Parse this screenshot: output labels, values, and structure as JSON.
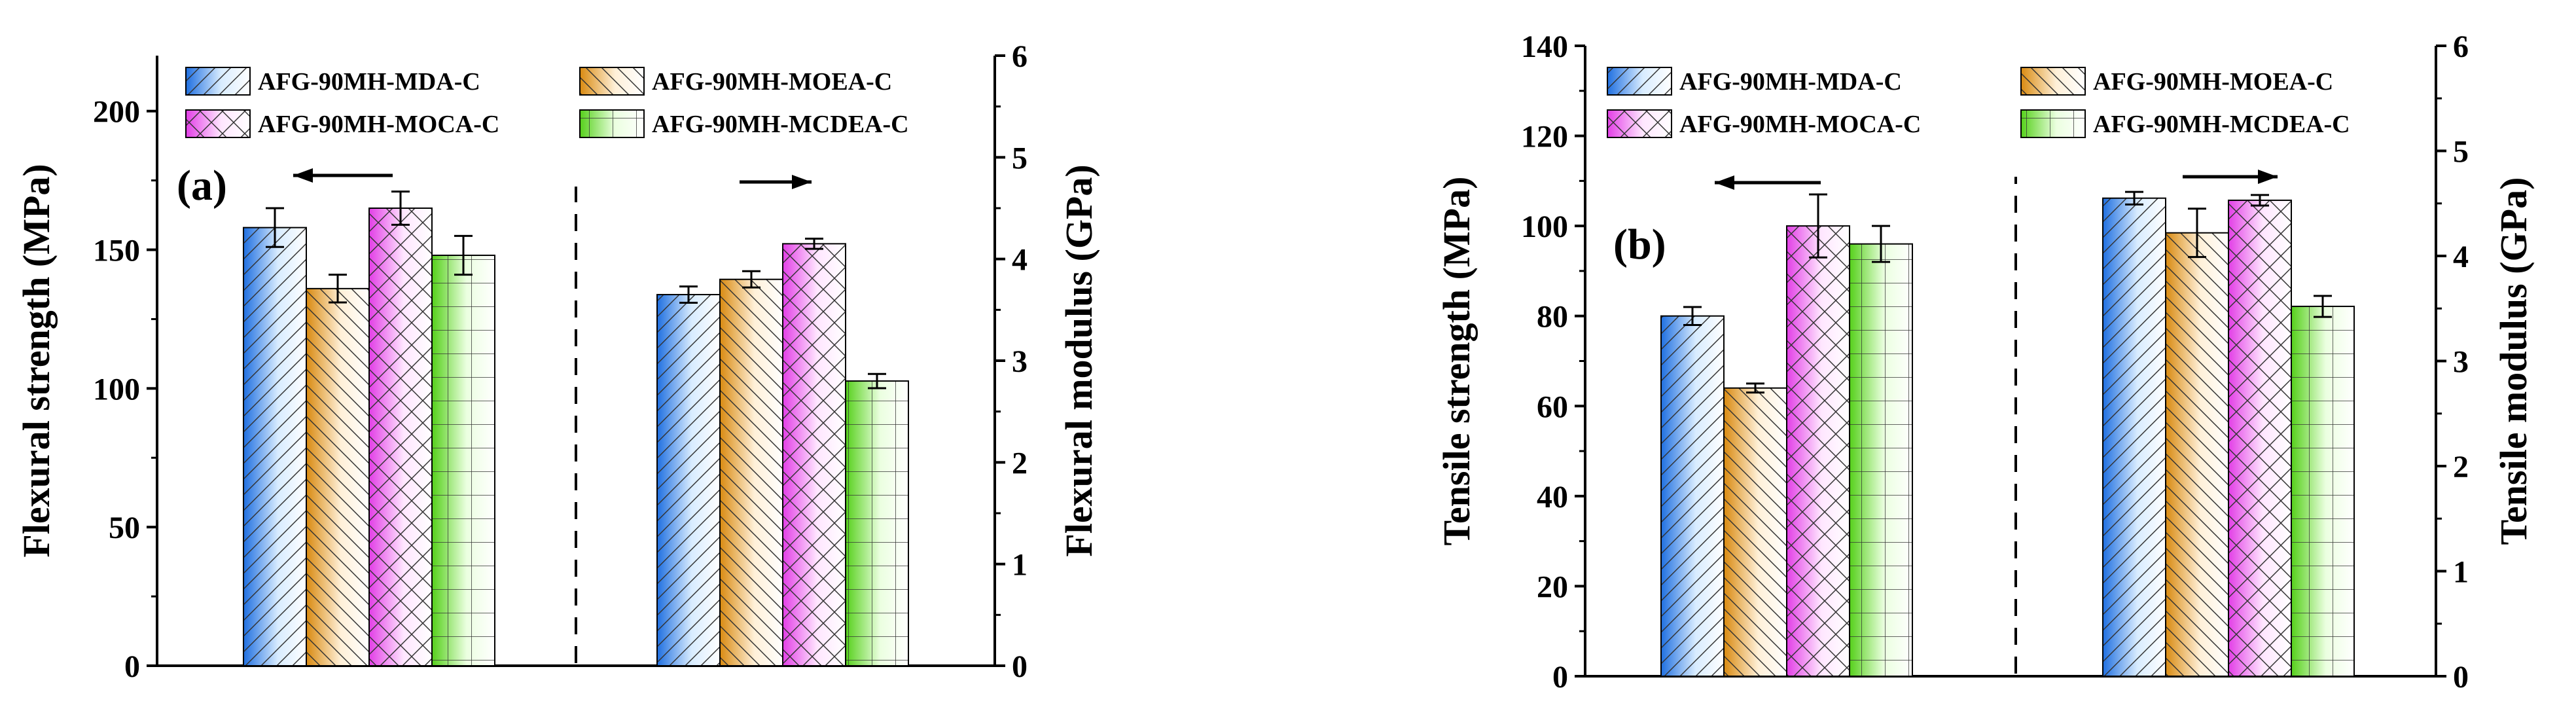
{
  "chart_data": [
    {
      "type": "bar",
      "panel_label": "(a)",
      "ylabel_left": "Flexural strength (MPa)",
      "ylabel_right": "Flexural modulus (GPa)",
      "ylim_left": [
        0,
        220
      ],
      "yticks_left": [
        "0",
        "50",
        "100",
        "150",
        "200"
      ],
      "ylim_right": [
        0,
        6
      ],
      "yticks_right": [
        "0",
        "1",
        "2",
        "3",
        "4",
        "5",
        "6"
      ],
      "series": [
        {
          "name": "AFG-90MH-MDA-C",
          "strength": 158,
          "strength_err": 7,
          "modulus": 3.65,
          "modulus_err": 0.08
        },
        {
          "name": "AFG-90MH-MOEA-C",
          "strength": 136,
          "strength_err": 5,
          "modulus": 3.8,
          "modulus_err": 0.08
        },
        {
          "name": "AFG-90MH-MOCA-C",
          "strength": 165,
          "strength_err": 6,
          "modulus": 4.15,
          "modulus_err": 0.05
        },
        {
          "name": "AFG-90MH-MCDEA-C",
          "strength": 148,
          "strength_err": 7,
          "modulus": 2.8,
          "modulus_err": 0.07
        }
      ]
    },
    {
      "type": "bar",
      "panel_label": "(b)",
      "ylabel_left": "Tensile strength (MPa)",
      "ylabel_right": "Tensile modulus (GPa)",
      "ylim_left": [
        0,
        140
      ],
      "yticks_left": [
        "0",
        "20",
        "40",
        "60",
        "80",
        "100",
        "120",
        "140"
      ],
      "ylim_right": [
        0,
        6
      ],
      "yticks_right": [
        "0",
        "1",
        "2",
        "3",
        "4",
        "5",
        "6"
      ],
      "series": [
        {
          "name": "AFG-90MH-MDA-C",
          "strength": 80,
          "strength_err": 2,
          "modulus": 4.55,
          "modulus_err": 0.06
        },
        {
          "name": "AFG-90MH-MOEA-C",
          "strength": 64,
          "strength_err": 1,
          "modulus": 4.22,
          "modulus_err": 0.23
        },
        {
          "name": "AFG-90MH-MOCA-C",
          "strength": 100,
          "strength_err": 7,
          "modulus": 4.53,
          "modulus_err": 0.05
        },
        {
          "name": "AFG-90MH-MCDEA-C",
          "strength": 96,
          "strength_err": 4,
          "modulus": 3.52,
          "modulus_err": 0.1
        }
      ]
    }
  ],
  "colors": {
    "mda": [
      "#1f6fe0",
      "#d8ecff"
    ],
    "moea": [
      "#d98a10",
      "#fff0d8"
    ],
    "moca": [
      "#e23ee6",
      "#ffe6ff"
    ],
    "mcdea": [
      "#55d01a",
      "#ebffe0"
    ]
  }
}
